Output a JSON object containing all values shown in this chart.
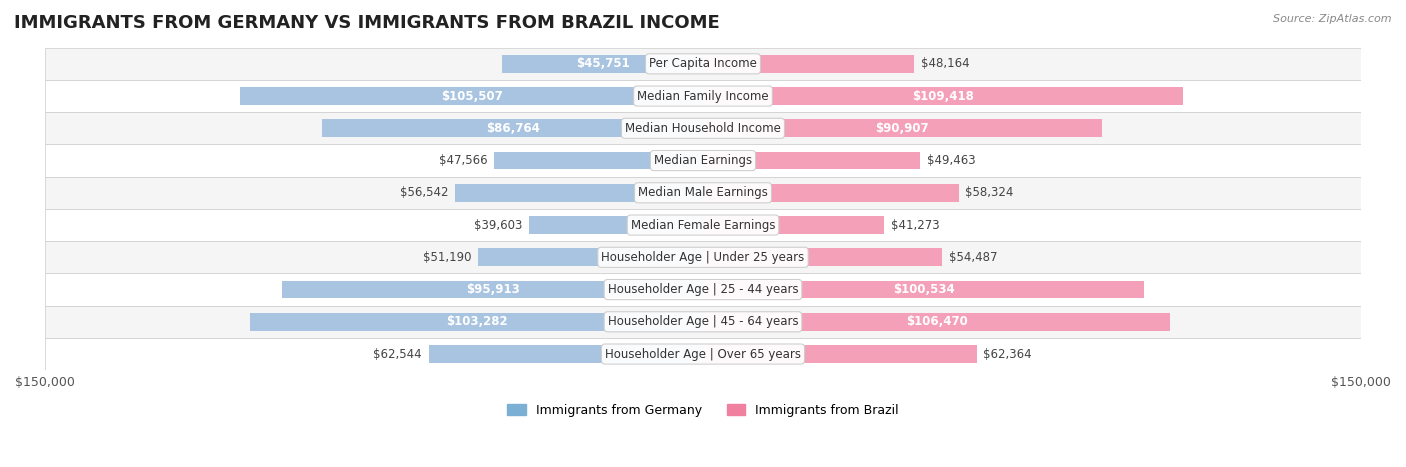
{
  "title": "IMMIGRANTS FROM GERMANY VS IMMIGRANTS FROM BRAZIL INCOME",
  "source": "Source: ZipAtlas.com",
  "categories": [
    "Per Capita Income",
    "Median Family Income",
    "Median Household Income",
    "Median Earnings",
    "Median Male Earnings",
    "Median Female Earnings",
    "Householder Age | Under 25 years",
    "Householder Age | 25 - 44 years",
    "Householder Age | 45 - 64 years",
    "Householder Age | Over 65 years"
  ],
  "germany_values": [
    45751,
    105507,
    86764,
    47566,
    56542,
    39603,
    51190,
    95913,
    103282,
    62544
  ],
  "brazil_values": [
    48164,
    109418,
    90907,
    49463,
    58324,
    41273,
    54487,
    100534,
    106470,
    62364
  ],
  "germany_labels": [
    "$45,751",
    "$105,507",
    "$86,764",
    "$47,566",
    "$56,542",
    "$39,603",
    "$51,190",
    "$95,913",
    "$103,282",
    "$62,544"
  ],
  "brazil_labels": [
    "$48,164",
    "$109,418",
    "$90,907",
    "$49,463",
    "$58,324",
    "$41,273",
    "$54,487",
    "$100,534",
    "$106,470",
    "$62,364"
  ],
  "max_val": 150000,
  "germany_color_bar": "#a8c4e0",
  "brazil_color_bar": "#f4a0b8",
  "germany_color_dark": "#6699cc",
  "brazil_color_dark": "#e8608a",
  "germany_legend_color": "#7bafd4",
  "brazil_legend_color": "#f080a0",
  "label_inside_germany": [
    true,
    true,
    true,
    false,
    false,
    false,
    false,
    true,
    true,
    false
  ],
  "label_inside_brazil": [
    false,
    true,
    true,
    false,
    false,
    false,
    false,
    true,
    true,
    false
  ],
  "background_row_color": "#f5f5f5",
  "background_row_alt": "#ffffff",
  "title_fontsize": 13,
  "label_fontsize": 8.5,
  "category_fontsize": 8.5,
  "axis_label": "$150,000",
  "bar_height": 0.55
}
